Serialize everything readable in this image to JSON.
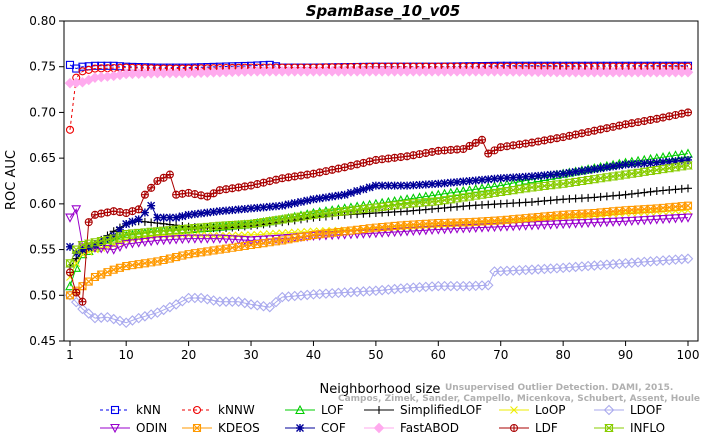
{
  "chart_data": {
    "type": "line",
    "title": "SpamBase_10_v05",
    "xlabel": "Neighborhood size",
    "ylabel": "ROC AUC",
    "xlim": [
      1,
      100
    ],
    "ylim": [
      0.45,
      0.8
    ],
    "x_ticks": [
      1,
      10,
      20,
      30,
      40,
      50,
      60,
      70,
      80,
      90,
      100
    ],
    "y_ticks": [
      "0.45",
      "0.50",
      "0.55",
      "0.60",
      "0.65",
      "0.70",
      "0.75",
      "0.80"
    ],
    "grid": false,
    "legend_position": "bottom",
    "watermark": [
      "Unsupervised Outlier Detection. DAMI, 2015.",
      "Campos, Zimek, Sander, Campello, Micenkova, Schubert, Assent, Houle"
    ],
    "series": [
      {
        "name": "kNN",
        "color": "#0000ee",
        "marker": "square",
        "dash": "3,3",
        "points": [
          [
            1,
            0.752
          ],
          [
            2,
            0.748
          ],
          [
            3,
            0.75
          ],
          [
            5,
            0.751
          ],
          [
            8,
            0.751
          ],
          [
            10,
            0.75
          ],
          [
            15,
            0.749
          ],
          [
            20,
            0.749
          ],
          [
            25,
            0.75
          ],
          [
            30,
            0.751
          ],
          [
            33,
            0.752
          ],
          [
            35,
            0.749
          ],
          [
            40,
            0.749
          ],
          [
            50,
            0.75
          ],
          [
            60,
            0.75
          ],
          [
            70,
            0.751
          ],
          [
            80,
            0.751
          ],
          [
            90,
            0.751
          ],
          [
            100,
            0.751
          ]
        ]
      },
      {
        "name": "kNNW",
        "color": "#ee0000",
        "marker": "circle",
        "dash": "3,3",
        "points": [
          [
            1,
            0.681
          ],
          [
            2,
            0.738
          ],
          [
            3,
            0.745
          ],
          [
            5,
            0.748
          ],
          [
            10,
            0.749
          ],
          [
            15,
            0.748
          ],
          [
            20,
            0.748
          ],
          [
            30,
            0.749
          ],
          [
            35,
            0.749
          ],
          [
            40,
            0.749
          ],
          [
            50,
            0.75
          ],
          [
            60,
            0.75
          ],
          [
            70,
            0.75
          ],
          [
            80,
            0.75
          ],
          [
            90,
            0.75
          ],
          [
            100,
            0.75
          ]
        ]
      },
      {
        "name": "LOF",
        "color": "#00cc00",
        "marker": "triangle-up",
        "points": [
          [
            1,
            0.51
          ],
          [
            2,
            0.53
          ],
          [
            3,
            0.545
          ],
          [
            5,
            0.552
          ],
          [
            8,
            0.56
          ],
          [
            10,
            0.565
          ],
          [
            15,
            0.57
          ],
          [
            20,
            0.572
          ],
          [
            25,
            0.575
          ],
          [
            30,
            0.578
          ],
          [
            35,
            0.583
          ],
          [
            40,
            0.59
          ],
          [
            45,
            0.595
          ],
          [
            50,
            0.6
          ],
          [
            55,
            0.605
          ],
          [
            60,
            0.61
          ],
          [
            65,
            0.615
          ],
          [
            70,
            0.62
          ],
          [
            75,
            0.627
          ],
          [
            80,
            0.633
          ],
          [
            85,
            0.639
          ],
          [
            90,
            0.645
          ],
          [
            95,
            0.65
          ],
          [
            100,
            0.655
          ]
        ]
      },
      {
        "name": "SimplifiedLOF",
        "color": "#000000",
        "marker": "plus",
        "points": [
          [
            1,
            0.531
          ],
          [
            2,
            0.54
          ],
          [
            3,
            0.548
          ],
          [
            5,
            0.556
          ],
          [
            8,
            0.57
          ],
          [
            10,
            0.578
          ],
          [
            12,
            0.581
          ],
          [
            15,
            0.579
          ],
          [
            20,
            0.575
          ],
          [
            25,
            0.573
          ],
          [
            30,
            0.576
          ],
          [
            35,
            0.58
          ],
          [
            40,
            0.585
          ],
          [
            45,
            0.588
          ],
          [
            50,
            0.59
          ],
          [
            55,
            0.592
          ],
          [
            60,
            0.595
          ],
          [
            65,
            0.598
          ],
          [
            70,
            0.6
          ],
          [
            75,
            0.602
          ],
          [
            80,
            0.605
          ],
          [
            85,
            0.607
          ],
          [
            90,
            0.61
          ],
          [
            95,
            0.614
          ],
          [
            100,
            0.617
          ]
        ]
      },
      {
        "name": "LoOP",
        "color": "#eeee00",
        "marker": "x",
        "points": [
          [
            1,
            0.52
          ],
          [
            2,
            0.535
          ],
          [
            3,
            0.545
          ],
          [
            5,
            0.55
          ],
          [
            8,
            0.555
          ],
          [
            10,
            0.56
          ],
          [
            15,
            0.565
          ],
          [
            20,
            0.566
          ],
          [
            25,
            0.565
          ],
          [
            30,
            0.566
          ],
          [
            35,
            0.568
          ],
          [
            40,
            0.57
          ],
          [
            50,
            0.572
          ],
          [
            60,
            0.576
          ],
          [
            70,
            0.58
          ],
          [
            80,
            0.585
          ],
          [
            90,
            0.59
          ],
          [
            100,
            0.593
          ]
        ]
      },
      {
        "name": "LDOF",
        "color": "#aaaaee",
        "marker": "diamond",
        "points": [
          [
            1,
            0.5
          ],
          [
            3,
            0.485
          ],
          [
            5,
            0.475
          ],
          [
            7,
            0.476
          ],
          [
            10,
            0.47
          ],
          [
            12,
            0.475
          ],
          [
            15,
            0.481
          ],
          [
            18,
            0.49
          ],
          [
            20,
            0.497
          ],
          [
            22,
            0.497
          ],
          [
            25,
            0.493
          ],
          [
            28,
            0.493
          ],
          [
            30,
            0.49
          ],
          [
            33,
            0.487
          ],
          [
            35,
            0.498
          ],
          [
            40,
            0.501
          ],
          [
            45,
            0.503
          ],
          [
            50,
            0.505
          ],
          [
            55,
            0.508
          ],
          [
            60,
            0.51
          ],
          [
            65,
            0.51
          ],
          [
            68,
            0.511
          ],
          [
            69,
            0.526
          ],
          [
            75,
            0.528
          ],
          [
            80,
            0.53
          ],
          [
            90,
            0.535
          ],
          [
            100,
            0.54
          ]
        ]
      },
      {
        "name": "ODIN",
        "color": "#9900cc",
        "marker": "triangle-down",
        "points": [
          [
            1,
            0.585
          ],
          [
            2,
            0.594
          ],
          [
            3,
            0.555
          ],
          [
            5,
            0.552
          ],
          [
            8,
            0.55
          ],
          [
            10,
            0.556
          ],
          [
            15,
            0.56
          ],
          [
            20,
            0.562
          ],
          [
            25,
            0.562
          ],
          [
            30,
            0.56
          ],
          [
            35,
            0.562
          ],
          [
            40,
            0.565
          ],
          [
            50,
            0.568
          ],
          [
            60,
            0.572
          ],
          [
            70,
            0.575
          ],
          [
            80,
            0.578
          ],
          [
            90,
            0.581
          ],
          [
            100,
            0.585
          ]
        ]
      },
      {
        "name": "KDEOS",
        "color": "#ff9900",
        "marker": "square-x",
        "points": [
          [
            1,
            0.5
          ],
          [
            2,
            0.505
          ],
          [
            3,
            0.51
          ],
          [
            5,
            0.52
          ],
          [
            8,
            0.528
          ],
          [
            10,
            0.532
          ],
          [
            15,
            0.537
          ],
          [
            20,
            0.545
          ],
          [
            25,
            0.55
          ],
          [
            30,
            0.555
          ],
          [
            35,
            0.56
          ],
          [
            40,
            0.566
          ],
          [
            45,
            0.57
          ],
          [
            50,
            0.574
          ],
          [
            55,
            0.577
          ],
          [
            60,
            0.579
          ],
          [
            65,
            0.58
          ],
          [
            70,
            0.582
          ],
          [
            75,
            0.585
          ],
          [
            80,
            0.588
          ],
          [
            85,
            0.59
          ],
          [
            90,
            0.593
          ],
          [
            95,
            0.595
          ],
          [
            100,
            0.598
          ]
        ]
      },
      {
        "name": "COF",
        "color": "#000099",
        "marker": "star",
        "points": [
          [
            1,
            0.553
          ],
          [
            2,
            0.546
          ],
          [
            3,
            0.55
          ],
          [
            5,
            0.555
          ],
          [
            8,
            0.565
          ],
          [
            10,
            0.578
          ],
          [
            12,
            0.583
          ],
          [
            14,
            0.598
          ],
          [
            15,
            0.585
          ],
          [
            18,
            0.585
          ],
          [
            20,
            0.588
          ],
          [
            25,
            0.592
          ],
          [
            30,
            0.595
          ],
          [
            35,
            0.598
          ],
          [
            40,
            0.605
          ],
          [
            45,
            0.61
          ],
          [
            50,
            0.62
          ],
          [
            55,
            0.62
          ],
          [
            60,
            0.622
          ],
          [
            65,
            0.625
          ],
          [
            70,
            0.628
          ],
          [
            75,
            0.63
          ],
          [
            80,
            0.633
          ],
          [
            85,
            0.638
          ],
          [
            90,
            0.643
          ],
          [
            95,
            0.645
          ],
          [
            100,
            0.648
          ]
        ]
      },
      {
        "name": "FastABOD",
        "color": "#ffaaee",
        "marker": "diamond-filled",
        "points": [
          [
            1,
            0.732
          ],
          [
            3,
            0.733
          ],
          [
            5,
            0.738
          ],
          [
            8,
            0.74
          ],
          [
            10,
            0.742
          ],
          [
            15,
            0.743
          ],
          [
            20,
            0.743
          ],
          [
            30,
            0.745
          ],
          [
            40,
            0.745
          ],
          [
            50,
            0.745
          ],
          [
            60,
            0.745
          ],
          [
            70,
            0.745
          ],
          [
            80,
            0.744
          ],
          [
            90,
            0.744
          ],
          [
            100,
            0.744
          ]
        ]
      },
      {
        "name": "LDF",
        "color": "#aa0000",
        "marker": "circle-plus",
        "points": [
          [
            1,
            0.525
          ],
          [
            2,
            0.503
          ],
          [
            3,
            0.493
          ],
          [
            4,
            0.58
          ],
          [
            5,
            0.588
          ],
          [
            8,
            0.592
          ],
          [
            10,
            0.59
          ],
          [
            12,
            0.594
          ],
          [
            13,
            0.61
          ],
          [
            15,
            0.625
          ],
          [
            17,
            0.632
          ],
          [
            18,
            0.61
          ],
          [
            20,
            0.612
          ],
          [
            23,
            0.608
          ],
          [
            25,
            0.615
          ],
          [
            30,
            0.62
          ],
          [
            35,
            0.628
          ],
          [
            40,
            0.633
          ],
          [
            45,
            0.64
          ],
          [
            50,
            0.648
          ],
          [
            55,
            0.652
          ],
          [
            60,
            0.658
          ],
          [
            64,
            0.66
          ],
          [
            67,
            0.67
          ],
          [
            68,
            0.655
          ],
          [
            70,
            0.662
          ],
          [
            75,
            0.667
          ],
          [
            80,
            0.673
          ],
          [
            85,
            0.68
          ],
          [
            90,
            0.687
          ],
          [
            95,
            0.693
          ],
          [
            100,
            0.7
          ]
        ]
      },
      {
        "name": "INFLO",
        "color": "#88cc00",
        "marker": "hourglass",
        "points": [
          [
            1,
            0.535
          ],
          [
            2,
            0.55
          ],
          [
            3,
            0.555
          ],
          [
            5,
            0.558
          ],
          [
            8,
            0.562
          ],
          [
            10,
            0.567
          ],
          [
            15,
            0.57
          ],
          [
            20,
            0.573
          ],
          [
            25,
            0.576
          ],
          [
            30,
            0.578
          ],
          [
            35,
            0.583
          ],
          [
            40,
            0.588
          ],
          [
            45,
            0.592
          ],
          [
            50,
            0.596
          ],
          [
            55,
            0.6
          ],
          [
            60,
            0.603
          ],
          [
            65,
            0.608
          ],
          [
            70,
            0.613
          ],
          [
            75,
            0.618
          ],
          [
            80,
            0.622
          ],
          [
            85,
            0.627
          ],
          [
            90,
            0.632
          ],
          [
            95,
            0.637
          ],
          [
            100,
            0.642
          ]
        ]
      }
    ]
  }
}
